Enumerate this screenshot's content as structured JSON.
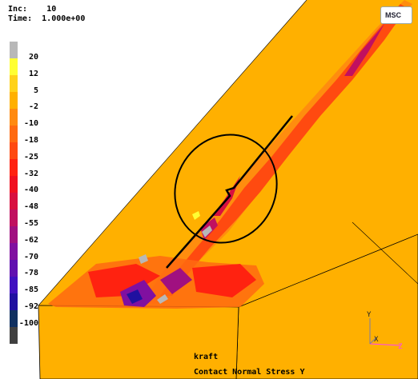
{
  "header": {
    "inc_label": "Inc:",
    "inc_value": "10",
    "time_label": "Time:",
    "time_value": "1.000e+00"
  },
  "legend": {
    "labels": [
      "20",
      "12",
      "5",
      "-2",
      "-10",
      "-18",
      "-25",
      "-32",
      "-40",
      "-48",
      "-55",
      "-62",
      "-70",
      "-78",
      "-85",
      "-92",
      "-100"
    ],
    "colors": [
      "#b8b8b8",
      "#ffff33",
      "#ffd21a",
      "#ffb000",
      "#ff8a10",
      "#ff6a10",
      "#ff4a10",
      "#ff2210",
      "#f01020",
      "#d81040",
      "#c01060",
      "#a01080",
      "#8010a0",
      "#6010b0",
      "#4010c0",
      "#2010a0",
      "#103060",
      "#404040"
    ]
  },
  "logo": {
    "text": "MSC"
  },
  "footer": {
    "job_name": "kraft",
    "result_name": "Contact Normal Stress Y"
  },
  "axes": {
    "y_label": "Y",
    "x_label": "X",
    "z_label": "Z"
  },
  "colors": {
    "base": "#ffb000",
    "edge": "#000000"
  }
}
